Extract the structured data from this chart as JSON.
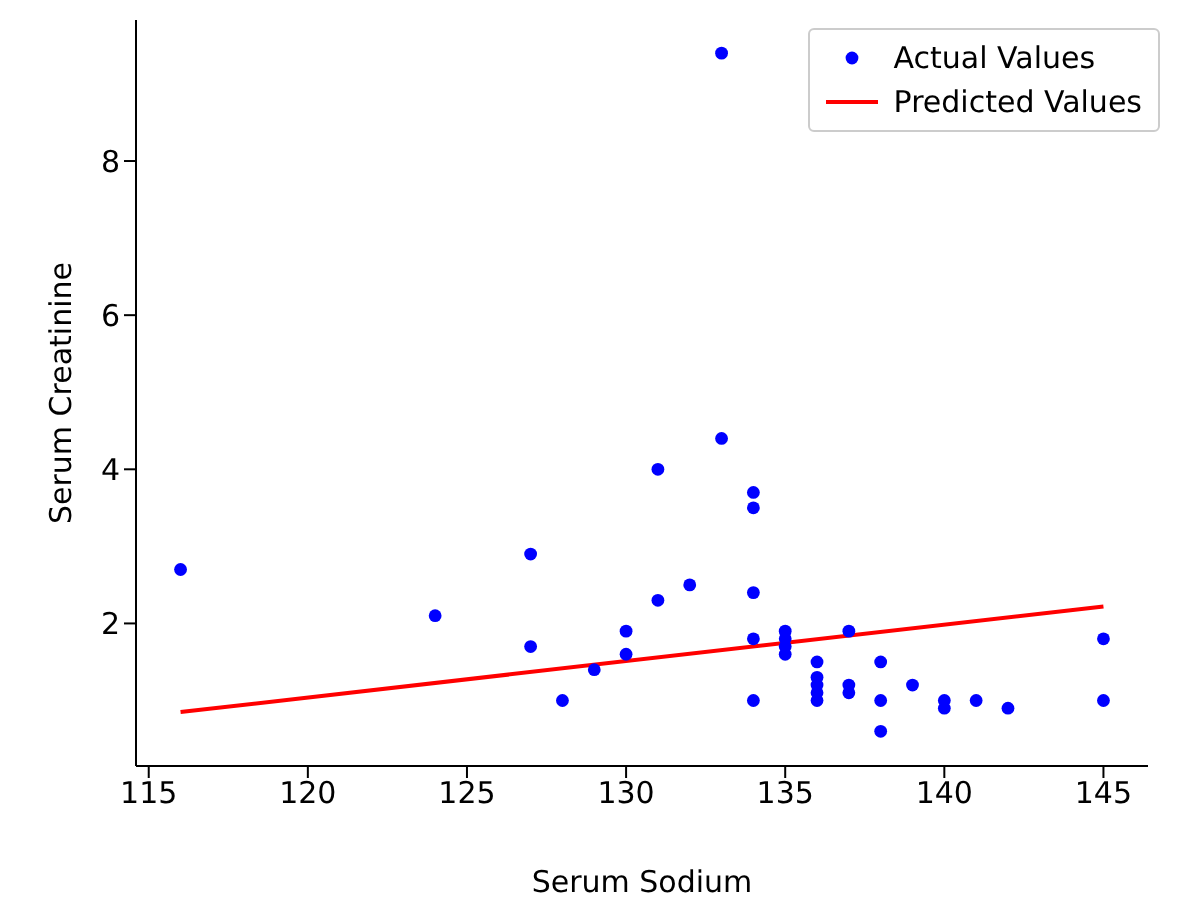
{
  "chart_data": {
    "type": "scatter",
    "xlabel": "Serum Sodium",
    "ylabel": "Serum Creatinine",
    "xlim": [
      114.6,
      146.4
    ],
    "xticks": [
      115,
      120,
      125,
      130,
      135,
      140,
      145
    ],
    "ylim": [
      0.15,
      9.83
    ],
    "yticks": [
      2,
      4,
      6,
      8
    ],
    "legend": "top right",
    "grid": false,
    "series": [
      {
        "name": "Actual Values",
        "type": "scatter",
        "color": "#0000ff",
        "marker": "circle",
        "x": [
          116,
          124,
          127,
          127,
          128,
          129,
          130,
          130,
          131,
          131,
          132,
          133,
          133,
          134,
          134,
          134,
          134,
          134,
          135,
          135,
          135,
          135,
          136,
          136,
          136,
          136,
          136,
          137,
          137,
          137,
          138,
          138,
          138,
          139,
          140,
          140,
          141,
          142,
          145,
          145
        ],
        "values": [
          2.7,
          2.1,
          2.9,
          1.7,
          1.0,
          1.4,
          1.9,
          1.6,
          4.0,
          2.3,
          2.5,
          9.4,
          4.4,
          3.7,
          3.5,
          2.4,
          1.8,
          1.0,
          1.9,
          1.8,
          1.7,
          1.6,
          1.5,
          1.3,
          1.2,
          1.1,
          1.0,
          1.9,
          1.2,
          1.1,
          1.5,
          1.0,
          0.6,
          1.2,
          1.0,
          0.9,
          1.0,
          0.9,
          1.8,
          1.0
        ]
      },
      {
        "name": "Predicted Values",
        "type": "line",
        "color": "#ff0000",
        "line_style": "solid",
        "x": [
          116,
          145
        ],
        "values": [
          0.85,
          2.22
        ]
      }
    ]
  }
}
